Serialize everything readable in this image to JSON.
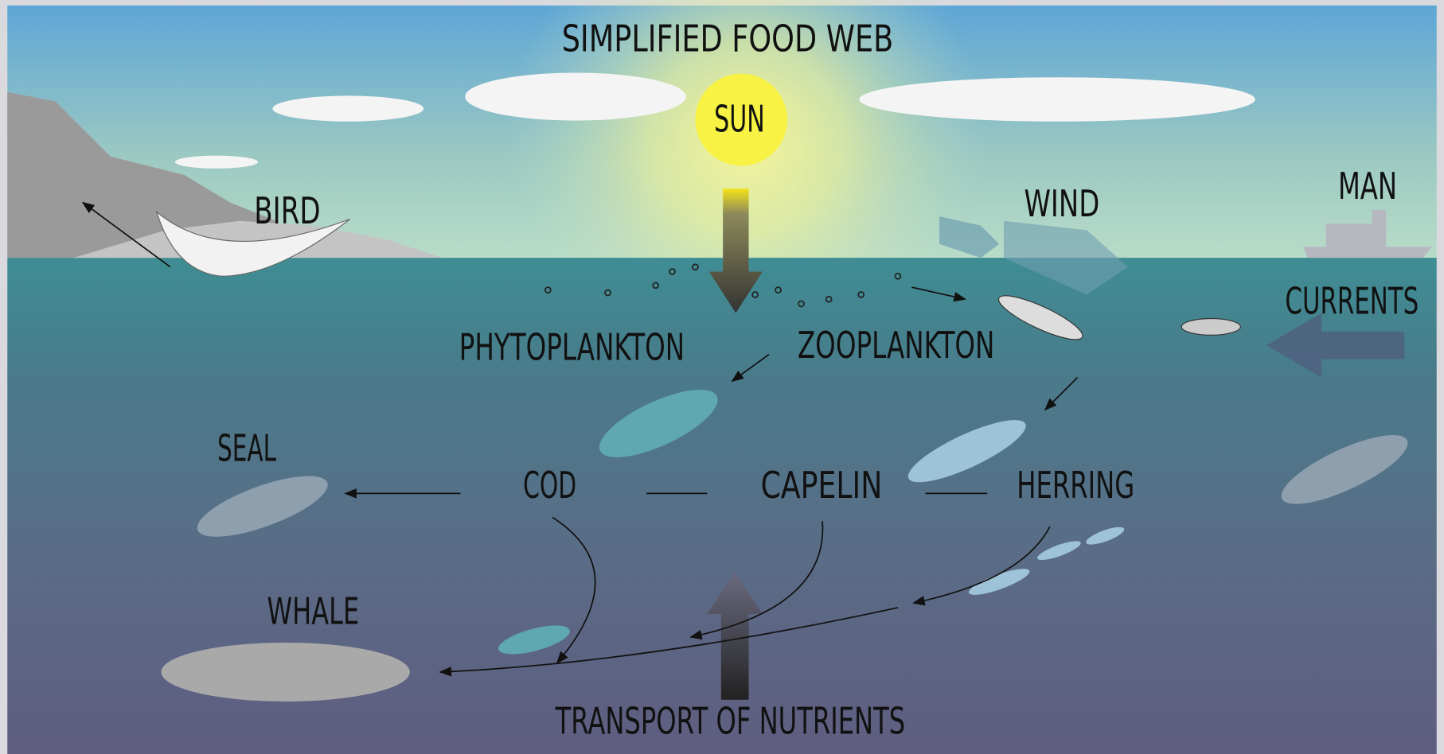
{
  "title": "SIMPLIFIED FOOD WEB",
  "labels": {
    "sun": "SUN",
    "bird": "BIRD",
    "wind": "WIND",
    "man": "MAN",
    "currents": "CURRENTS",
    "phytoplankton": "PHYTOPLANKTON",
    "zooplankton": "ZOOPLANKTON",
    "seal": "SEAL",
    "cod": "COD",
    "capelin": "CAPELIN",
    "herring": "HERRING",
    "whale": "WHALE",
    "transport": "TRANSPORT OF NUTRIENTS"
  }
}
